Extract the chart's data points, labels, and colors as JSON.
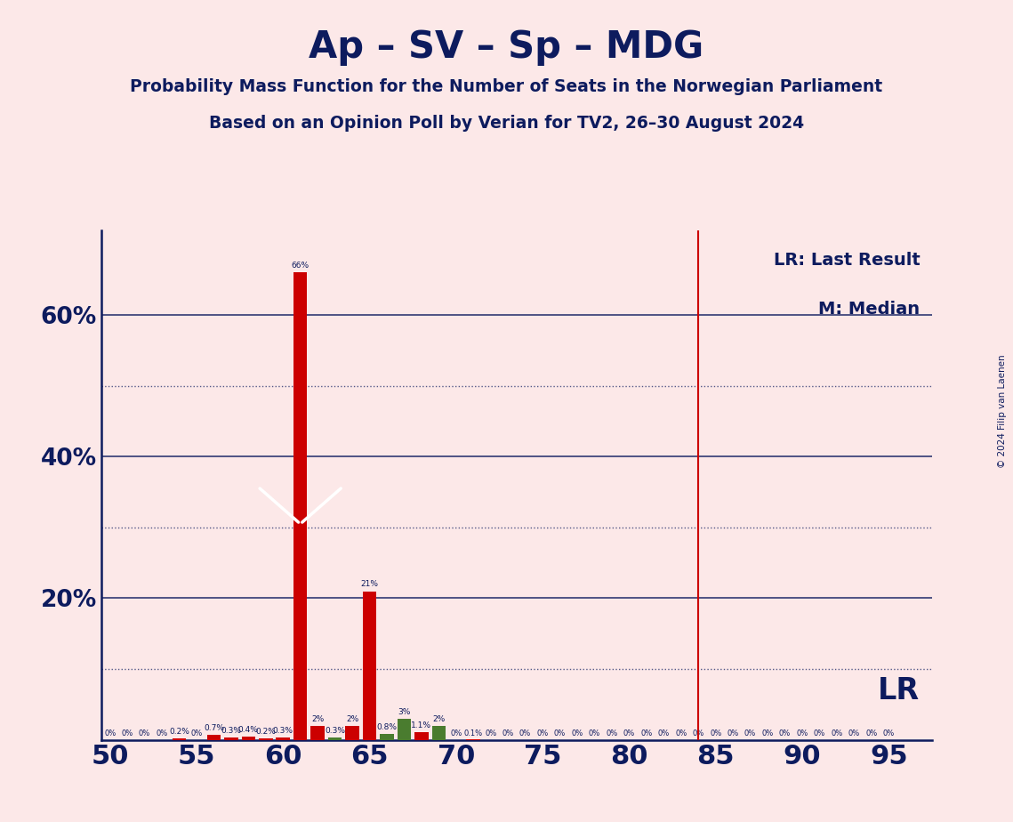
{
  "title": "Ap – SV – Sp – MDG",
  "subtitle1": "Probability Mass Function for the Number of Seats in the Norwegian Parliament",
  "subtitle2": "Based on an Opinion Poll by Verian for TV2, 26–30 August 2024",
  "copyright": "© 2024 Filip van Laenen",
  "background_color": "#fce8e8",
  "title_color": "#0d1b5e",
  "bar_color_red": "#cc0000",
  "bar_color_green": "#4a7c2f",
  "lr_line_color": "#cc0000",
  "x_min": 49.5,
  "x_max": 97.5,
  "y_min": 0,
  "y_max": 72,
  "ytick_vals": [
    20,
    40,
    60
  ],
  "ytick_labels": [
    "20%",
    "40%",
    "60%"
  ],
  "xticks": [
    50,
    55,
    60,
    65,
    70,
    75,
    80,
    85,
    90,
    95
  ],
  "lr_seat": 84,
  "median_seat": 61,
  "seats": [
    50,
    51,
    52,
    53,
    54,
    55,
    56,
    57,
    58,
    59,
    60,
    61,
    62,
    63,
    64,
    65,
    66,
    67,
    68,
    69,
    70,
    71,
    72,
    73,
    74,
    75,
    76,
    77,
    78,
    79,
    80,
    81,
    82,
    83,
    84,
    85,
    86,
    87,
    88,
    89,
    90,
    91,
    92,
    93,
    94,
    95
  ],
  "values": [
    0,
    0,
    0,
    0,
    0.2,
    0,
    0.7,
    0.3,
    0.4,
    0.2,
    0.3,
    66,
    2,
    0.3,
    2,
    21,
    0.8,
    3,
    1.1,
    2,
    0,
    0.1,
    0,
    0,
    0,
    0,
    0,
    0,
    0,
    0,
    0,
    0,
    0,
    0,
    0,
    0,
    0,
    0,
    0,
    0,
    0,
    0,
    0,
    0,
    0,
    0
  ],
  "colors": [
    "red",
    "red",
    "red",
    "red",
    "red",
    "red",
    "red",
    "red",
    "red",
    "red",
    "red",
    "red",
    "red",
    "green",
    "red",
    "red",
    "green",
    "green",
    "red",
    "green",
    "red",
    "red",
    "red",
    "red",
    "red",
    "red",
    "red",
    "red",
    "red",
    "red",
    "red",
    "red",
    "red",
    "red",
    "red",
    "red",
    "red",
    "red",
    "red",
    "red",
    "red",
    "red",
    "red",
    "red",
    "red",
    "red"
  ],
  "labels": [
    "0%",
    "0%",
    "0%",
    "0%",
    "0.2%",
    "0%",
    "0.7%",
    "0.3%",
    "0.4%",
    "0.2%",
    "0.3%",
    "66%",
    "2%",
    "0.3%",
    "2%",
    "21%",
    "0.8%",
    "3%",
    "1.1%",
    "2%",
    "0%",
    "0.1%",
    "0%",
    "0%",
    "0%",
    "0%",
    "0%",
    "0%",
    "0%",
    "0%",
    "0%",
    "0%",
    "0%",
    "0%",
    "0%",
    "0%",
    "0%",
    "0%",
    "0%",
    "0%",
    "0%",
    "0%",
    "0%",
    "0%",
    "0%",
    "0%"
  ],
  "solid_gridlines": [
    20,
    40,
    60
  ],
  "dotted_gridlines": [
    10,
    30,
    50
  ],
  "gridline_color": "#0d1b5e",
  "legend_lr": "LR: Last Result",
  "legend_m": "M: Median",
  "legend_lr_label": "LR"
}
